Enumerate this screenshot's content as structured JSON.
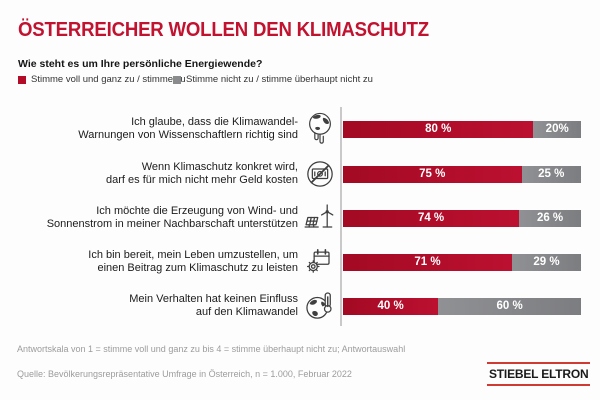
{
  "title": "ÖSTERREICHER WOLLEN DEN KLIMASCHUTZ",
  "question": "Wie steht es um Ihre persönliche Energiewende?",
  "legend": {
    "agree_label": "Stimme voll und ganz zu / stimme zu",
    "disagree_label": "Stimme nicht zu / stimme überhaupt nicht zu"
  },
  "rows": [
    {
      "icon": "melting-earth-icon",
      "line1": "Ich glaube, dass die Klimawandel-",
      "line2": "Warnungen von Wissenschaftlern richtig sind",
      "agree": 80,
      "disagree": 20,
      "agree_text": "80 %",
      "disagree_text": "20%"
    },
    {
      "icon": "no-extra-cost-icon",
      "line1": "Wenn Klimaschutz konkret wird,",
      "line2": "darf es für mich nicht mehr Geld kosten",
      "agree": 75,
      "disagree": 25,
      "agree_text": "75 %",
      "disagree_text": "25 %"
    },
    {
      "icon": "wind-solar-icon",
      "line1": "Ich möchte die Erzeugung von Wind- und",
      "line2": "Sonnenstrom in meiner Nachbarschaft unterstützen",
      "agree": 74,
      "disagree": 26,
      "agree_text": "74 %",
      "disagree_text": "26 %"
    },
    {
      "icon": "calendar-gear-icon",
      "line1": "Ich bin bereit, mein Leben umzustellen, um",
      "line2": "einen Beitrag zum Klimaschutz zu leisten",
      "agree": 71,
      "disagree": 29,
      "agree_text": "71 %",
      "disagree_text": "29 %"
    },
    {
      "icon": "earth-thermometer-icon",
      "line1": "Mein Verhalten hat keinen Einfluss",
      "line2": "auf den Klimawandel",
      "agree": 40,
      "disagree": 60,
      "agree_text": "40 %",
      "disagree_text": "60 %"
    }
  ],
  "chart_data": {
    "type": "bar",
    "orientation": "horizontal",
    "stacked": true,
    "title": "ÖSTERREICHER WOLLEN DEN KLIMASCHUTZ",
    "subtitle": "Wie steht es um Ihre persönliche Energiewende?",
    "categories": [
      "Ich glaube, dass die Klimawandel-Warnungen von Wissenschaftlern richtig sind",
      "Wenn Klimaschutz konkret wird, darf es für mich nicht mehr Geld kosten",
      "Ich möchte die Erzeugung von Wind- und Sonnenstrom in meiner Nachbarschaft unterstützen",
      "Ich bin bereit, mein Leben umzustellen, um einen Beitrag zum Klimaschutz zu leisten",
      "Mein Verhalten hat keinen Einfluss auf den Klimawandel"
    ],
    "series": [
      {
        "name": "Stimme voll und ganz zu / stimme zu",
        "color": "#b30c28",
        "values": [
          80,
          75,
          74,
          71,
          40
        ]
      },
      {
        "name": "Stimme nicht zu / stimme überhaupt nicht zu",
        "color": "#8a8b8d",
        "values": [
          20,
          25,
          26,
          29,
          60
        ]
      }
    ],
    "value_labels": [
      [
        "80 %",
        "20%"
      ],
      [
        "75 %",
        "25 %"
      ],
      [
        "74 %",
        "26 %"
      ],
      [
        "71 %",
        "29 %"
      ],
      [
        "40 %",
        "60 %"
      ]
    ],
    "xlim": [
      0,
      100
    ],
    "grid": false,
    "legend_position": "top-left"
  },
  "footnote": "Antwortskala von 1 = stimme voll und ganz zu bis 4 = stimme überhaupt nicht zu; Antwortauswahl",
  "source": "Quelle: Bevölkerungsrepräsentative Umfrage in Österreich, n = 1.000, Februar 2022",
  "logo_text": "STIEBEL ELTRON",
  "colors": {
    "title_red": "#c11230",
    "bar_red": "#b30c28",
    "bar_gray": "#8a8b8d",
    "logo_line_red": "#cf3a33",
    "footnote_gray": "#9c9c9c",
    "axis_gray": "#c9c9c9",
    "background": "#fdfdfd"
  }
}
